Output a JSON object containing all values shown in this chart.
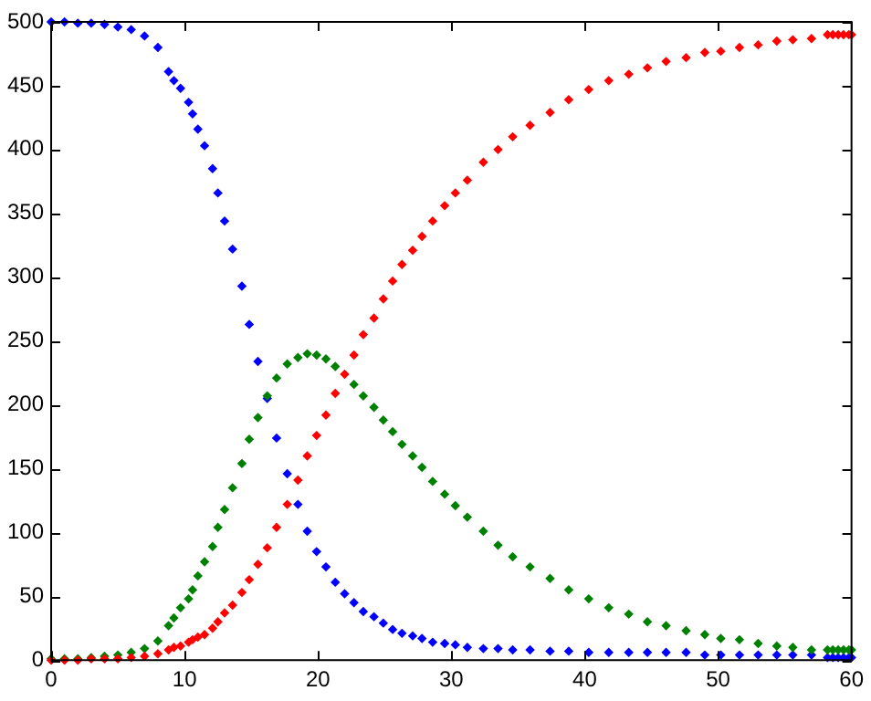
{
  "chart_data": {
    "type": "scatter",
    "x": [
      0,
      1,
      2,
      3,
      4,
      5,
      6,
      7,
      8,
      8.8,
      9.2,
      9.7,
      10.3,
      10.6,
      11,
      11.5,
      12.1,
      12.5,
      13,
      13.6,
      14.3,
      14.85,
      15.5,
      16.2,
      16.9,
      17.7,
      18.5,
      19.2,
      19.9,
      20.6,
      21.3,
      22,
      22.7,
      23.4,
      24.2,
      24.9,
      25.6,
      26.3,
      27.1,
      27.8,
      28.6,
      29.5,
      30.3,
      31.2,
      32.4,
      33.5,
      34.6,
      35.9,
      37.4,
      38.8,
      40.3,
      41.8,
      43.3,
      44.7,
      46.1,
      47.6,
      49,
      50.2,
      51.6,
      53,
      54.4,
      55.6,
      57,
      58.2,
      58.6,
      59,
      59.4,
      59.8,
      60
    ],
    "series": [
      {
        "color": "#0000ff",
        "values": [
          500,
          500,
          499,
          499,
          498,
          496,
          494,
          489,
          480,
          461,
          454,
          448,
          437,
          428,
          416,
          403,
          385,
          366,
          344,
          322,
          293,
          263,
          234,
          205,
          174,
          146,
          122,
          101,
          85,
          73,
          61,
          52,
          45,
          38,
          34,
          29,
          24,
          21,
          19,
          17,
          14,
          13,
          12,
          10,
          9,
          9,
          8,
          8,
          7,
          7,
          6,
          6,
          6,
          6,
          6,
          6,
          4,
          4,
          4,
          4,
          4,
          4,
          4,
          2,
          2,
          2,
          2,
          2,
          2
        ]
      },
      {
        "color": "#008000",
        "values": [
          1,
          1,
          1,
          2,
          3,
          4,
          6,
          9,
          15,
          27,
          33,
          41,
          48,
          55,
          66,
          77,
          89,
          104,
          118,
          135,
          154,
          173,
          190,
          207,
          221,
          232,
          237,
          240,
          239,
          236,
          230,
          null,
          216,
          207,
          198,
          188,
          179,
          169,
          160,
          151,
          140,
          130,
          121,
          112,
          101,
          90,
          81,
          73,
          64,
          55,
          48,
          41,
          36,
          30,
          27,
          23,
          20,
          17,
          16,
          13,
          11,
          10,
          8,
          8,
          8,
          8,
          8,
          8,
          8
        ]
      },
      {
        "color": "#ff0000",
        "values": [
          0,
          0,
          0,
          1,
          1,
          1,
          2,
          3,
          5,
          8,
          10,
          11,
          14,
          16,
          18,
          20,
          25,
          30,
          37,
          43,
          53,
          63,
          75,
          88,
          104,
          122,
          141,
          160,
          176,
          192,
          209,
          224,
          239,
          255,
          268,
          283,
          297,
          310,
          321,
          332,
          344,
          356,
          366,
          376,
          390,
          400,
          410,
          419,
          429,
          439,
          447,
          454,
          459,
          464,
          469,
          472,
          476,
          477,
          480,
          482,
          485,
          486,
          487,
          490,
          490,
          490,
          490,
          490,
          490
        ]
      }
    ],
    "xlim": [
      0,
      60
    ],
    "ylim": [
      0,
      500
    ],
    "xticks": [
      0,
      10,
      20,
      30,
      40,
      50,
      60
    ],
    "yticks": [
      0,
      50,
      100,
      150,
      200,
      250,
      300,
      350,
      400,
      450,
      500
    ],
    "grid": false,
    "legend": false,
    "marker": "diamond"
  }
}
